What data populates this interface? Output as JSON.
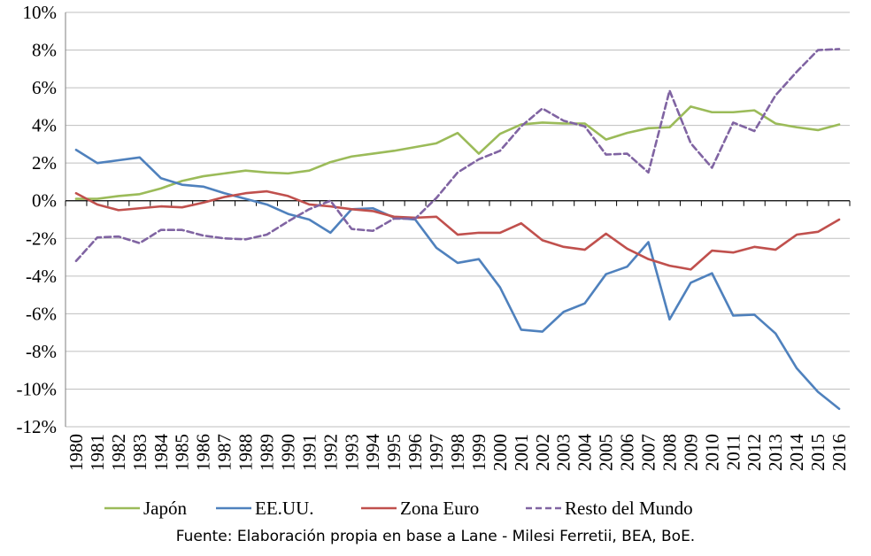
{
  "chart_data": {
    "type": "line",
    "title": "",
    "xlabel": "",
    "ylabel": "",
    "ylim": [
      -12,
      10
    ],
    "yticks": [
      10,
      8,
      6,
      4,
      2,
      0,
      -2,
      -4,
      -6,
      -8,
      -10,
      -12
    ],
    "y_tick_labels": [
      "10%",
      "8%",
      "6%",
      "4%",
      "2%",
      "0%",
      "-2%",
      "-4%",
      "-6%",
      "-8%",
      "-10%",
      "-12%"
    ],
    "grid": true,
    "legend": "bottom",
    "x": [
      "1980",
      "1981",
      "1982",
      "1983",
      "1984",
      "1985",
      "1986",
      "1987",
      "1988",
      "1989",
      "1990",
      "1991",
      "1992",
      "1993",
      "1994",
      "1995",
      "1996",
      "1997",
      "1998",
      "1999",
      "2000",
      "2001",
      "2002",
      "2003",
      "2004",
      "2005",
      "2006",
      "2007",
      "2008",
      "2009",
      "2010",
      "2011",
      "2012",
      "2013",
      "2014",
      "2015",
      "2016"
    ],
    "series": [
      {
        "name": "Japón",
        "color": "#9bbb59",
        "dash": false,
        "values": [
          0.1,
          0.1,
          0.25,
          0.35,
          0.65,
          1.05,
          1.3,
          1.45,
          1.6,
          1.5,
          1.45,
          1.6,
          2.05,
          2.35,
          2.5,
          2.65,
          2.85,
          3.05,
          3.6,
          2.5,
          3.55,
          4.05,
          4.15,
          4.1,
          4.1,
          3.25,
          3.6,
          3.85,
          3.9,
          5.0,
          4.7,
          4.7,
          4.8,
          4.1,
          3.9,
          3.75,
          4.05
        ]
      },
      {
        "name": "EE.UU.",
        "color": "#4f81bd",
        "dash": false,
        "values": [
          2.7,
          2.0,
          2.15,
          2.3,
          1.2,
          0.85,
          0.75,
          0.4,
          0.1,
          -0.2,
          -0.7,
          -1.0,
          -1.7,
          -0.45,
          -0.4,
          -0.9,
          -1.0,
          -2.5,
          -3.3,
          -3.1,
          -4.6,
          -6.85,
          -6.95,
          -5.9,
          -5.45,
          -3.9,
          -3.5,
          -2.2,
          -6.3,
          -4.35,
          -3.85,
          -6.1,
          -6.05,
          -7.05,
          -8.9,
          -10.15,
          -11.05
        ]
      },
      {
        "name": "Zona Euro",
        "color": "#c0504d",
        "dash": false,
        "values": [
          0.4,
          -0.2,
          -0.5,
          -0.4,
          -0.3,
          -0.35,
          -0.1,
          0.2,
          0.4,
          0.5,
          0.25,
          -0.2,
          -0.3,
          -0.45,
          -0.55,
          -0.85,
          -0.9,
          -0.85,
          -1.8,
          -1.7,
          -1.7,
          -1.2,
          -2.1,
          -2.45,
          -2.6,
          -1.75,
          -2.55,
          -3.1,
          -3.45,
          -3.65,
          -2.65,
          -2.75,
          -2.45,
          -2.6,
          -1.8,
          -1.65,
          -1.0
        ]
      },
      {
        "name": "Resto del Mundo",
        "color": "#8064a2",
        "dash": true,
        "values": [
          -3.2,
          -1.95,
          -1.9,
          -2.25,
          -1.55,
          -1.55,
          -1.85,
          -2.0,
          -2.05,
          -1.8,
          -1.1,
          -0.45,
          0.0,
          -1.5,
          -1.6,
          -0.95,
          -0.95,
          0.15,
          1.5,
          2.2,
          2.65,
          3.95,
          4.9,
          4.25,
          3.95,
          2.45,
          2.5,
          1.5,
          5.85,
          3.05,
          1.75,
          4.15,
          3.7,
          5.6,
          6.85,
          8.0,
          8.05
        ]
      }
    ]
  },
  "source_text": "Fuente: Elaboración propia en base a Lane - Milesi Ferretii, BEA, BoE."
}
